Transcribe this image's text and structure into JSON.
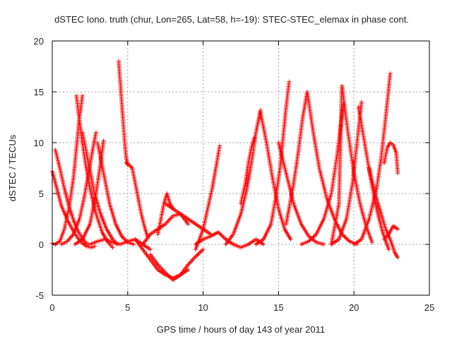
{
  "chart_data": {
    "type": "scatter",
    "title": "dSTEC Iono. truth (chur, Lon=265, Lat=58, h=-19): STEC-STEC_elemax in phase cont.",
    "xlabel": "GPS time / hours of day 143 of year 2011",
    "ylabel": "dSTEC  / TECUs",
    "xlim": [
      0,
      25
    ],
    "ylim": [
      -5,
      20
    ],
    "xticks": [
      0,
      5,
      10,
      15,
      20,
      25
    ],
    "yticks": [
      -5,
      0,
      5,
      10,
      15,
      20
    ],
    "grid": true,
    "marker": "plus",
    "color": "#ff0000",
    "arcs": [
      {
        "x": [
          0.0,
          0.3,
          0.6,
          1.0,
          1.4,
          1.7,
          2.0,
          2.3,
          2.6,
          2.8
        ],
        "y": [
          7.2,
          5.5,
          3.8,
          2.4,
          1.3,
          0.6,
          0.1,
          -0.2,
          -0.3,
          -0.2
        ]
      },
      {
        "x": [
          0.0,
          0.2,
          0.5,
          0.8,
          1.1,
          1.4,
          1.6,
          1.8,
          2.0
        ],
        "y": [
          0.1,
          0.0,
          0.3,
          1.5,
          3.5,
          6.5,
          9.5,
          12.5,
          14.6
        ]
      },
      {
        "x": [
          1.6,
          1.9,
          2.2,
          2.5,
          2.9,
          3.3,
          3.7,
          4.0
        ],
        "y": [
          14.6,
          11.0,
          8.0,
          5.5,
          3.0,
          1.2,
          0.2,
          -0.3
        ]
      },
      {
        "x": [
          0.2,
          0.5,
          0.8,
          1.1,
          1.4,
          1.7,
          2.0,
          2.2,
          2.4
        ],
        "y": [
          9.3,
          7.5,
          5.5,
          3.8,
          2.4,
          1.3,
          0.6,
          0.2,
          0.0
        ]
      },
      {
        "x": [
          0.6,
          1.0,
          1.4,
          1.8,
          2.1,
          2.4,
          2.7,
          2.9
        ],
        "y": [
          0.0,
          0.3,
          1.0,
          2.5,
          4.5,
          7.0,
          9.5,
          11.0
        ]
      },
      {
        "x": [
          2.0,
          2.4,
          2.8,
          3.2,
          3.6,
          4.0,
          4.3
        ],
        "y": [
          11.0,
          8.0,
          5.0,
          3.0,
          1.5,
          0.5,
          0.0
        ]
      },
      {
        "x": [
          1.5,
          2.0,
          2.5,
          2.9,
          3.2,
          3.4
        ],
        "y": [
          0.0,
          0.5,
          2.0,
          5.0,
          8.0,
          10.2
        ]
      },
      {
        "x": [
          3.0,
          3.4,
          3.8,
          4.2,
          4.6,
          5.0,
          5.4
        ],
        "y": [
          10.0,
          7.0,
          4.0,
          2.0,
          0.8,
          0.2,
          0.0
        ]
      },
      {
        "x": [
          4.4,
          4.5,
          4.6,
          4.7,
          4.8,
          4.9,
          5.0
        ],
        "y": [
          18.0,
          16.0,
          14.0,
          12.0,
          10.0,
          8.5,
          7.8
        ]
      },
      {
        "x": [
          4.9,
          5.1,
          5.3,
          5.5,
          5.7,
          5.9,
          6.1,
          6.3
        ],
        "y": [
          8.0,
          7.8,
          7.5,
          6.0,
          4.5,
          3.0,
          1.8,
          0.8
        ]
      },
      {
        "x": [
          2.5,
          3.0,
          3.5,
          4.0,
          4.5,
          5.0,
          5.5,
          6.0,
          6.5
        ],
        "y": [
          0.0,
          0.3,
          0.5,
          0.2,
          0.0,
          0.3,
          0.5,
          0.0,
          -0.5
        ]
      },
      {
        "x": [
          5.5,
          6.0,
          6.5,
          7.0,
          7.5,
          8.0,
          8.5,
          9.0
        ],
        "y": [
          0.5,
          -0.5,
          -1.5,
          -2.5,
          -3.0,
          -3.3,
          -3.0,
          -2.5
        ]
      },
      {
        "x": [
          6.5,
          7.0,
          7.5,
          8.0,
          8.5,
          9.0,
          9.5,
          10.0
        ],
        "y": [
          -1.0,
          -2.0,
          -2.8,
          -3.5,
          -3.0,
          -2.0,
          -1.2,
          -0.5
        ]
      },
      {
        "x": [
          7.0,
          7.2,
          7.4,
          7.6,
          7.8,
          8.0
        ],
        "y": [
          1.0,
          2.5,
          4.0,
          5.0,
          4.0,
          3.5
        ]
      },
      {
        "x": [
          7.5,
          8.0,
          8.5,
          9.0,
          9.5,
          10.0,
          10.5
        ],
        "y": [
          4.0,
          3.5,
          3.0,
          2.5,
          2.0,
          1.5,
          1.0
        ]
      },
      {
        "x": [
          6.0,
          6.5,
          7.0,
          7.5,
          8.0,
          8.5,
          9.0
        ],
        "y": [
          0.0,
          1.0,
          1.5,
          2.0,
          2.8,
          3.0,
          2.0
        ]
      },
      {
        "x": [
          9.5,
          10.0,
          10.3,
          10.6,
          10.9,
          11.1
        ],
        "y": [
          -0.5,
          1.5,
          3.5,
          5.5,
          8.0,
          9.7
        ]
      },
      {
        "x": [
          9.5,
          10.0,
          10.5,
          11.0,
          11.5,
          12.0,
          12.5,
          13.0,
          13.5,
          14.0
        ],
        "y": [
          0.0,
          0.5,
          0.8,
          1.2,
          0.5,
          0.0,
          -0.3,
          0.0,
          0.5,
          0.0
        ]
      },
      {
        "x": [
          11.5,
          12.0,
          12.5,
          12.9,
          13.2,
          13.5,
          13.8
        ],
        "y": [
          0.0,
          1.0,
          3.0,
          5.5,
          8.0,
          11.0,
          13.2
        ]
      },
      {
        "x": [
          12.5,
          12.8,
          13.0,
          13.2,
          13.4
        ],
        "y": [
          4.0,
          6.0,
          8.0,
          9.5,
          10.5
        ]
      },
      {
        "x": [
          13.8,
          14.2,
          14.6,
          15.0,
          15.4,
          15.8
        ],
        "y": [
          13.0,
          10.0,
          6.5,
          3.5,
          1.5,
          0.5
        ]
      },
      {
        "x": [
          13.5,
          14.0,
          14.5,
          14.8,
          15.1,
          15.3,
          15.5,
          15.7
        ],
        "y": [
          0.0,
          0.5,
          2.0,
          4.5,
          7.5,
          10.5,
          13.5,
          16.0
        ]
      },
      {
        "x": [
          15.0,
          15.5,
          16.0,
          16.5,
          17.0,
          17.5,
          18.0
        ],
        "y": [
          10.0,
          7.0,
          4.0,
          2.0,
          0.8,
          0.2,
          0.0
        ]
      },
      {
        "x": [
          15.5,
          16.0,
          16.3,
          16.6,
          16.9
        ],
        "y": [
          2.0,
          6.0,
          9.0,
          12.5,
          15.0
        ]
      },
      {
        "x": [
          16.9,
          17.3,
          17.7,
          18.2,
          18.7,
          19.2,
          19.7,
          20.2
        ],
        "y": [
          15.0,
          11.0,
          7.5,
          4.5,
          2.5,
          1.0,
          0.3,
          0.0
        ]
      },
      {
        "x": [
          16.5,
          17.0,
          17.5,
          18.0,
          18.5,
          18.9,
          19.3
        ],
        "y": [
          0.0,
          0.3,
          1.0,
          2.5,
          5.0,
          9.0,
          13.8
        ]
      },
      {
        "x": [
          18.5,
          19.0,
          19.2,
          19.6,
          20.0,
          20.4,
          20.8,
          21.2
        ],
        "y": [
          0.0,
          4.0,
          15.6,
          11.0,
          7.0,
          4.0,
          1.8,
          0.2
        ]
      },
      {
        "x": [
          18.5,
          19.0,
          19.5,
          19.9,
          20.2,
          20.5
        ],
        "y": [
          0.0,
          0.5,
          2.5,
          6.0,
          10.0,
          14.0
        ]
      },
      {
        "x": [
          20.3,
          20.7,
          21.1,
          21.5,
          21.9,
          22.3
        ],
        "y": [
          13.5,
          10.0,
          6.5,
          3.5,
          1.2,
          -0.5
        ]
      },
      {
        "x": [
          20.0,
          20.5,
          21.0,
          21.5,
          21.8,
          22.1,
          22.4
        ],
        "y": [
          0.0,
          0.5,
          2.5,
          5.5,
          8.5,
          12.5,
          16.8
        ]
      },
      {
        "x": [
          21.0,
          21.4,
          21.8,
          22.1,
          22.4,
          22.7,
          22.9
        ],
        "y": [
          7.5,
          5.0,
          3.0,
          1.5,
          0.5,
          -0.8,
          -1.3
        ]
      },
      {
        "x": [
          22.0,
          22.2,
          22.4,
          22.6,
          22.8,
          22.9
        ],
        "y": [
          8.0,
          9.5,
          10.0,
          9.8,
          9.0,
          7.0
        ]
      },
      {
        "x": [
          22.0,
          22.3,
          22.6,
          22.9
        ],
        "y": [
          0.5,
          1.0,
          1.8,
          1.5
        ]
      }
    ]
  }
}
